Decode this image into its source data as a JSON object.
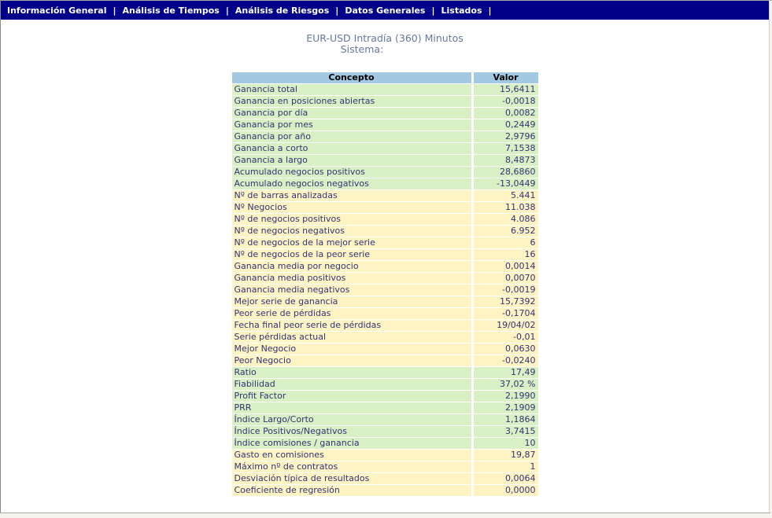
{
  "nav": {
    "separator": "|",
    "items": [
      "Información General",
      "Análisis de Tiempos",
      "Análisis de Riesgos",
      "Datos Generales",
      "Listados"
    ]
  },
  "header": {
    "title": "EUR-USD Intradía (360) Minutos",
    "subtitle": "Sistema:"
  },
  "table": {
    "columns": [
      "Concepto",
      "Valor"
    ],
    "rows": [
      {
        "concepto": "Ganancia total",
        "valor": "15,6411",
        "band": "green"
      },
      {
        "concepto": "Ganancia en posiciones abiertas",
        "valor": "-0,0018",
        "band": "green"
      },
      {
        "concepto": "Ganancia por día",
        "valor": "0,0082",
        "band": "green"
      },
      {
        "concepto": "Ganancia por mes",
        "valor": "0,2449",
        "band": "green"
      },
      {
        "concepto": "Ganancia por año",
        "valor": "2,9796",
        "band": "green"
      },
      {
        "concepto": "Ganancia a corto",
        "valor": "7,1538",
        "band": "green"
      },
      {
        "concepto": "Ganancia a largo",
        "valor": "8,4873",
        "band": "green"
      },
      {
        "concepto": "Acumulado negocios positivos",
        "valor": "28,6860",
        "band": "green"
      },
      {
        "concepto": "Acumulado negocios negativos",
        "valor": "-13,0449",
        "band": "green"
      },
      {
        "concepto": "Nº de barras analizadas",
        "valor": "5.441",
        "band": "yellow"
      },
      {
        "concepto": "Nº Negocios",
        "valor": "11.038",
        "band": "yellow"
      },
      {
        "concepto": "Nº de negocios positivos",
        "valor": "4.086",
        "band": "yellow"
      },
      {
        "concepto": "Nº de negocios negativos",
        "valor": "6.952",
        "band": "yellow"
      },
      {
        "concepto": "Nº de negocios de la mejor serie",
        "valor": "6",
        "band": "yellow"
      },
      {
        "concepto": "Nº de negocios de la peor serie",
        "valor": "16",
        "band": "yellow"
      },
      {
        "concepto": "Ganancia media por negocio",
        "valor": "0,0014",
        "band": "yellow"
      },
      {
        "concepto": "Ganancia media positivos",
        "valor": "0,0070",
        "band": "yellow"
      },
      {
        "concepto": "Ganancia media negativos",
        "valor": "-0,0019",
        "band": "yellow"
      },
      {
        "concepto": "Mejor serie de ganancia",
        "valor": "15,7392",
        "band": "yellow"
      },
      {
        "concepto": "Peor serie de pérdidas",
        "valor": "-0,1704",
        "band": "yellow"
      },
      {
        "concepto": "Fecha final peor serie de pérdidas",
        "valor": "19/04/02",
        "band": "yellow"
      },
      {
        "concepto": "Serie pérdidas actual",
        "valor": "-0,01",
        "band": "yellow"
      },
      {
        "concepto": "Mejor Negocio",
        "valor": "0,0630",
        "band": "yellow"
      },
      {
        "concepto": "Peor Negocio",
        "valor": "-0,0240",
        "band": "yellow"
      },
      {
        "concepto": "Ratio",
        "valor": "17,49",
        "band": "green"
      },
      {
        "concepto": "Fiabilidad",
        "valor": "37,02 %",
        "band": "green"
      },
      {
        "concepto": "Profit Factor",
        "valor": "2,1990",
        "band": "green"
      },
      {
        "concepto": "PRR",
        "valor": "2,1909",
        "band": "green"
      },
      {
        "concepto": "Índice Largo/Corto",
        "valor": "1,1864",
        "band": "green"
      },
      {
        "concepto": "Índice Positivos/Negativos",
        "valor": "3,7415",
        "band": "green"
      },
      {
        "concepto": "Índice comisiones / ganancia",
        "valor": "10",
        "band": "green"
      },
      {
        "concepto": "Gasto en comisiones",
        "valor": "19,87",
        "band": "yellow"
      },
      {
        "concepto": "Máximo nº de contratos",
        "valor": "1",
        "band": "yellow"
      },
      {
        "concepto": "Desviación típica de resultados",
        "valor": "0,0064",
        "band": "yellow"
      },
      {
        "concepto": "Coeficiente de regresión",
        "valor": "0,0000",
        "band": "yellow"
      }
    ]
  },
  "colors": {
    "nav_bg": "#00008b",
    "nav_text": "#ffffff",
    "title_text": "#6677a0",
    "header_bg": "#a2c8e2",
    "header_text": "#000000",
    "row_green": "#d8f0c4",
    "row_yellow": "#fdf3c3",
    "row_text": "#333377"
  }
}
